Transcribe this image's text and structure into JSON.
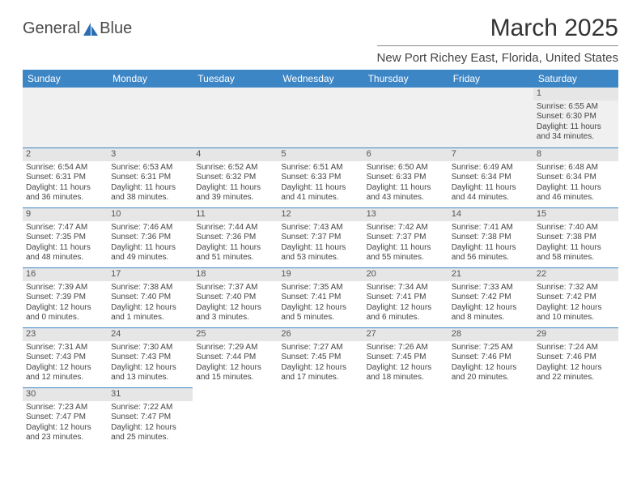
{
  "brand": {
    "name1": "General",
    "name2": "Blue",
    "logo_color": "#2a6db5"
  },
  "header": {
    "month_year": "March 2025",
    "location": "New Port Richey East, Florida, United States"
  },
  "colors": {
    "header_bg": "#3d86c6",
    "header_fg": "#ffffff",
    "daybar_bg": "#e6e6e6",
    "row_divider": "#3d86c6",
    "empty_bg": "#f0f0f0",
    "text": "#444444"
  },
  "weekdays": [
    "Sunday",
    "Monday",
    "Tuesday",
    "Wednesday",
    "Thursday",
    "Friday",
    "Saturday"
  ],
  "first_weekday_index": 6,
  "days": [
    {
      "n": 1,
      "sunrise": "6:55 AM",
      "sunset": "6:30 PM",
      "dl_h": 11,
      "dl_m": 34
    },
    {
      "n": 2,
      "sunrise": "6:54 AM",
      "sunset": "6:31 PM",
      "dl_h": 11,
      "dl_m": 36
    },
    {
      "n": 3,
      "sunrise": "6:53 AM",
      "sunset": "6:31 PM",
      "dl_h": 11,
      "dl_m": 38
    },
    {
      "n": 4,
      "sunrise": "6:52 AM",
      "sunset": "6:32 PM",
      "dl_h": 11,
      "dl_m": 39
    },
    {
      "n": 5,
      "sunrise": "6:51 AM",
      "sunset": "6:33 PM",
      "dl_h": 11,
      "dl_m": 41
    },
    {
      "n": 6,
      "sunrise": "6:50 AM",
      "sunset": "6:33 PM",
      "dl_h": 11,
      "dl_m": 43
    },
    {
      "n": 7,
      "sunrise": "6:49 AM",
      "sunset": "6:34 PM",
      "dl_h": 11,
      "dl_m": 44
    },
    {
      "n": 8,
      "sunrise": "6:48 AM",
      "sunset": "6:34 PM",
      "dl_h": 11,
      "dl_m": 46
    },
    {
      "n": 9,
      "sunrise": "7:47 AM",
      "sunset": "7:35 PM",
      "dl_h": 11,
      "dl_m": 48
    },
    {
      "n": 10,
      "sunrise": "7:46 AM",
      "sunset": "7:36 PM",
      "dl_h": 11,
      "dl_m": 49
    },
    {
      "n": 11,
      "sunrise": "7:44 AM",
      "sunset": "7:36 PM",
      "dl_h": 11,
      "dl_m": 51
    },
    {
      "n": 12,
      "sunrise": "7:43 AM",
      "sunset": "7:37 PM",
      "dl_h": 11,
      "dl_m": 53
    },
    {
      "n": 13,
      "sunrise": "7:42 AM",
      "sunset": "7:37 PM",
      "dl_h": 11,
      "dl_m": 55
    },
    {
      "n": 14,
      "sunrise": "7:41 AM",
      "sunset": "7:38 PM",
      "dl_h": 11,
      "dl_m": 56
    },
    {
      "n": 15,
      "sunrise": "7:40 AM",
      "sunset": "7:38 PM",
      "dl_h": 11,
      "dl_m": 58
    },
    {
      "n": 16,
      "sunrise": "7:39 AM",
      "sunset": "7:39 PM",
      "dl_h": 12,
      "dl_m": 0
    },
    {
      "n": 17,
      "sunrise": "7:38 AM",
      "sunset": "7:40 PM",
      "dl_h": 12,
      "dl_m": 1
    },
    {
      "n": 18,
      "sunrise": "7:37 AM",
      "sunset": "7:40 PM",
      "dl_h": 12,
      "dl_m": 3
    },
    {
      "n": 19,
      "sunrise": "7:35 AM",
      "sunset": "7:41 PM",
      "dl_h": 12,
      "dl_m": 5
    },
    {
      "n": 20,
      "sunrise": "7:34 AM",
      "sunset": "7:41 PM",
      "dl_h": 12,
      "dl_m": 6
    },
    {
      "n": 21,
      "sunrise": "7:33 AM",
      "sunset": "7:42 PM",
      "dl_h": 12,
      "dl_m": 8
    },
    {
      "n": 22,
      "sunrise": "7:32 AM",
      "sunset": "7:42 PM",
      "dl_h": 12,
      "dl_m": 10
    },
    {
      "n": 23,
      "sunrise": "7:31 AM",
      "sunset": "7:43 PM",
      "dl_h": 12,
      "dl_m": 12
    },
    {
      "n": 24,
      "sunrise": "7:30 AM",
      "sunset": "7:43 PM",
      "dl_h": 12,
      "dl_m": 13
    },
    {
      "n": 25,
      "sunrise": "7:29 AM",
      "sunset": "7:44 PM",
      "dl_h": 12,
      "dl_m": 15
    },
    {
      "n": 26,
      "sunrise": "7:27 AM",
      "sunset": "7:45 PM",
      "dl_h": 12,
      "dl_m": 17
    },
    {
      "n": 27,
      "sunrise": "7:26 AM",
      "sunset": "7:45 PM",
      "dl_h": 12,
      "dl_m": 18
    },
    {
      "n": 28,
      "sunrise": "7:25 AM",
      "sunset": "7:46 PM",
      "dl_h": 12,
      "dl_m": 20
    },
    {
      "n": 29,
      "sunrise": "7:24 AM",
      "sunset": "7:46 PM",
      "dl_h": 12,
      "dl_m": 22
    },
    {
      "n": 30,
      "sunrise": "7:23 AM",
      "sunset": "7:47 PM",
      "dl_h": 12,
      "dl_m": 23
    },
    {
      "n": 31,
      "sunrise": "7:22 AM",
      "sunset": "7:47 PM",
      "dl_h": 12,
      "dl_m": 25
    }
  ],
  "labels": {
    "sunrise": "Sunrise:",
    "sunset": "Sunset:",
    "daylight_prefix": "Daylight:",
    "hours_word": "hours",
    "and_word": "and",
    "minutes_word": "minutes."
  }
}
